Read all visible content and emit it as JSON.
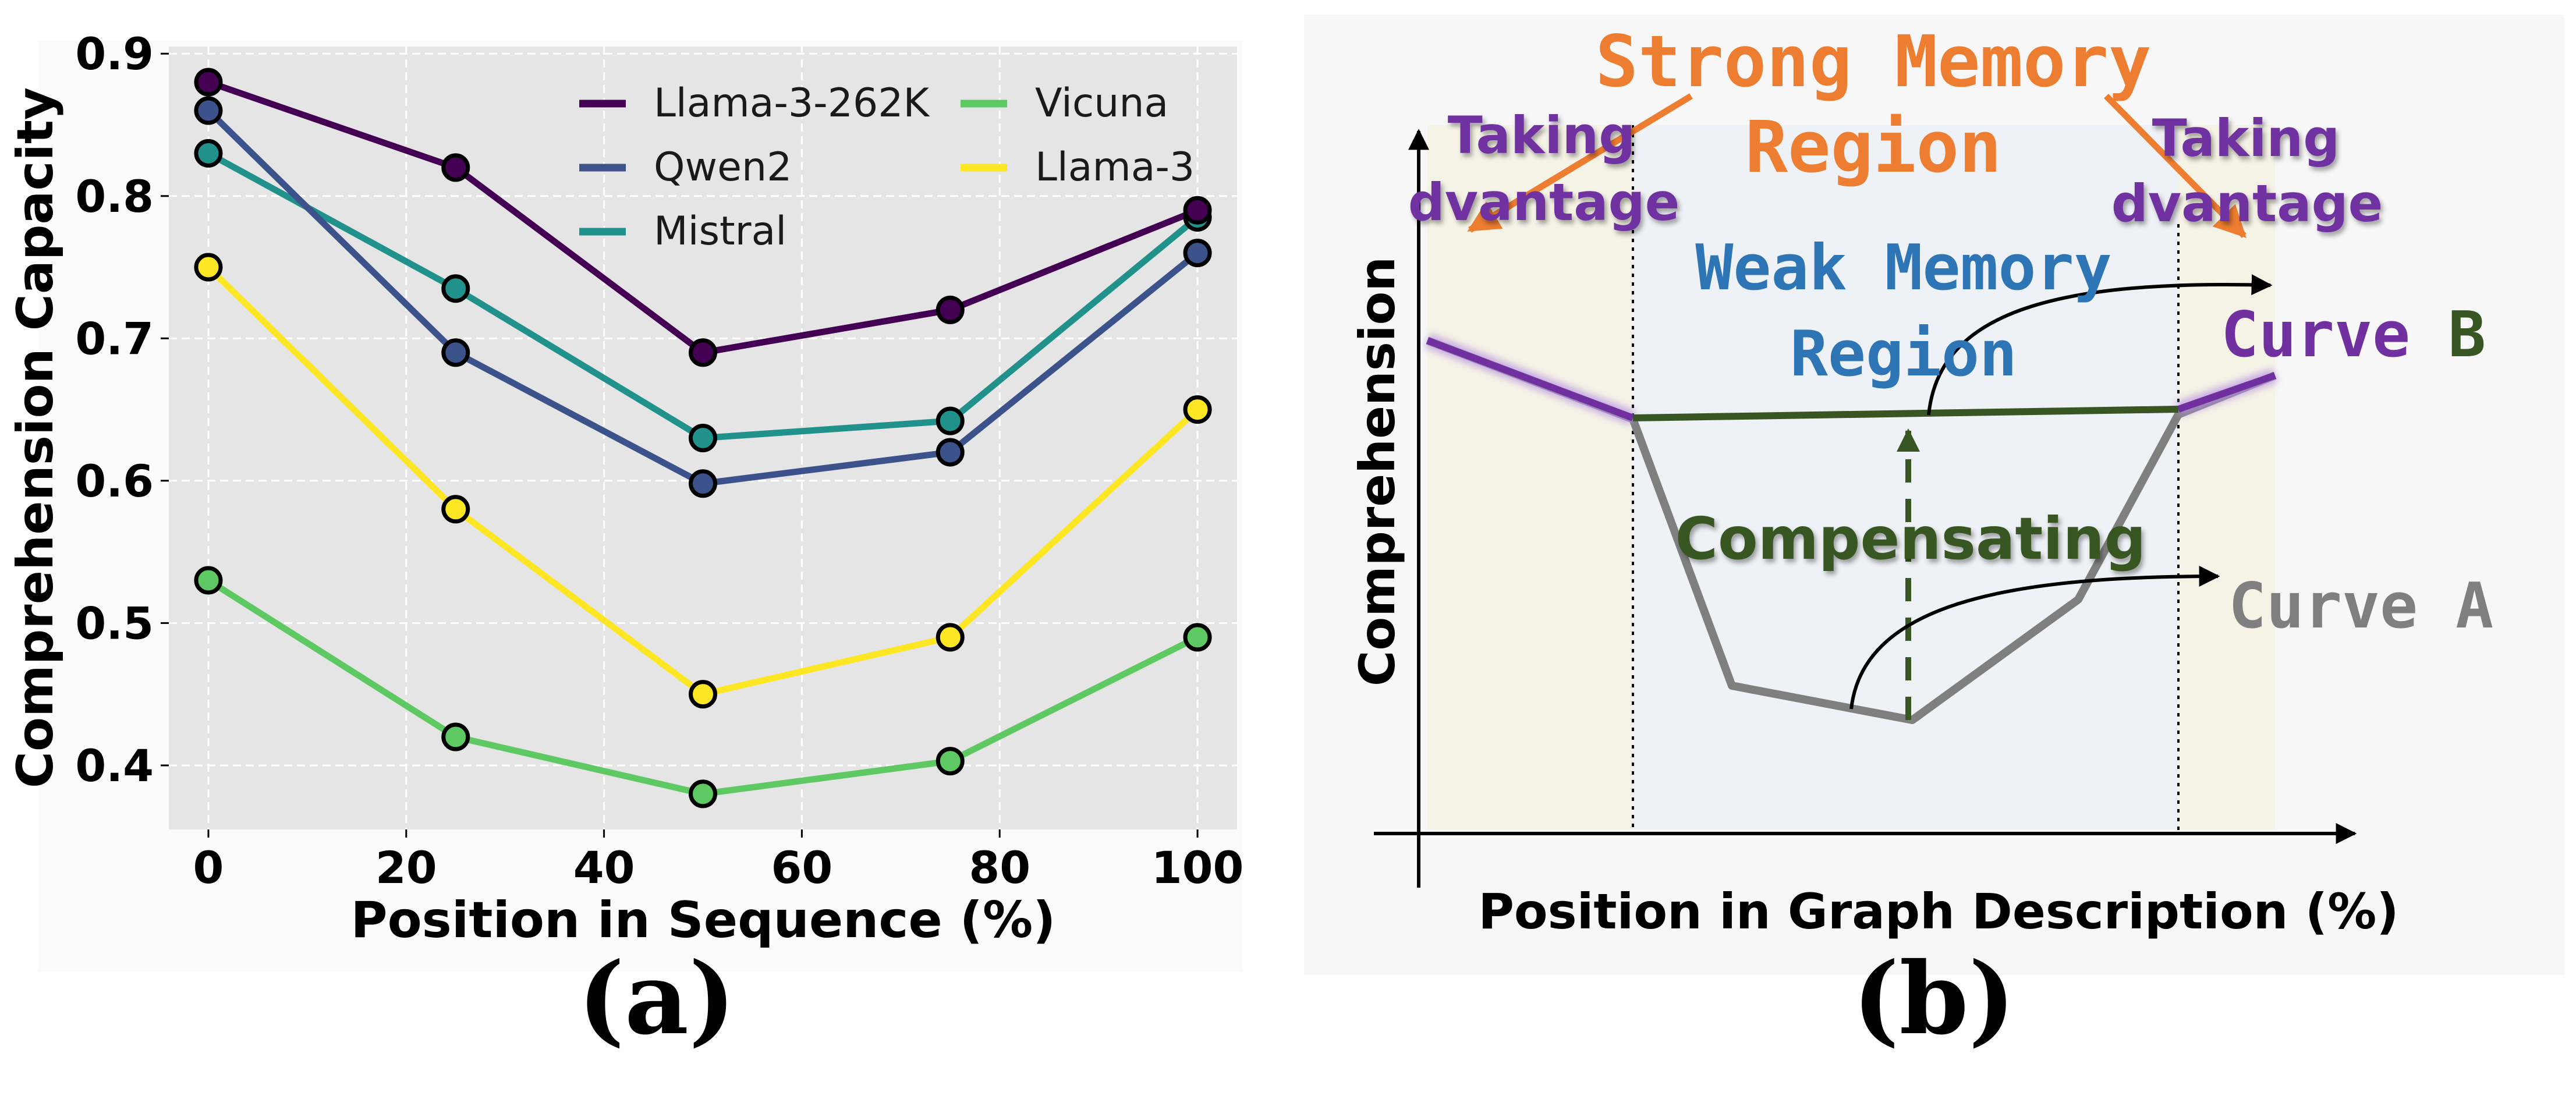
{
  "chart_data": [
    {
      "type": "line",
      "x": [
        0,
        25,
        50,
        75,
        100
      ],
      "xlabel": "Position in Sequence (%)",
      "ylabel": "Comprehension Capacity",
      "xlim": [
        -4,
        104
      ],
      "ylim": [
        0.355,
        0.905
      ],
      "xticks": [
        "0",
        "20",
        "40",
        "60",
        "80",
        "100"
      ],
      "yticks": [
        "0.4",
        "0.5",
        "0.6",
        "0.7",
        "0.8",
        "0.9"
      ],
      "grid": true,
      "legend": "top-right, two columns",
      "series": [
        {
          "name": "Llama-3-262K",
          "color": "#440154",
          "values": [
            0.88,
            0.82,
            0.69,
            0.72,
            0.79
          ]
        },
        {
          "name": "Qwen2",
          "color": "#3b528b",
          "values": [
            0.86,
            0.69,
            0.598,
            0.62,
            0.76
          ]
        },
        {
          "name": "Mistral",
          "color": "#21918c",
          "values": [
            0.83,
            0.735,
            0.63,
            0.642,
            0.785
          ]
        },
        {
          "name": "Vicuna",
          "color": "#5ec962",
          "values": [
            0.53,
            0.42,
            0.38,
            0.403,
            0.49
          ]
        },
        {
          "name": "Llama-3",
          "color": "#fde725",
          "values": [
            0.75,
            0.58,
            0.45,
            0.49,
            0.65
          ]
        }
      ],
      "caption": "(a)"
    },
    {
      "type": "diagram",
      "xlabel": "Position in Graph Description (%)",
      "ylabel": "Comprehension",
      "labels": {
        "strong_line1": "Strong Memory",
        "strong_line2": "Region",
        "weak_line1": "Weak Memory",
        "weak_line2": "Region",
        "taking_left_1": "Taking",
        "taking_left_2": "dvantage",
        "taking_right_1": "Taking",
        "taking_right_2": "dvantage",
        "compensating": "Compensating",
        "curve_b": "Curve B",
        "curve_a": "Curve A"
      },
      "colors": {
        "strong": "#ed7d31",
        "weak": "#2e75b6",
        "taking": "#7030a0",
        "compensating": "#375623",
        "curve_a": "#7f7f7f",
        "curve_b_label": "#375623",
        "curve_b_purple": "#7030a0"
      },
      "caption": "(b)"
    }
  ]
}
